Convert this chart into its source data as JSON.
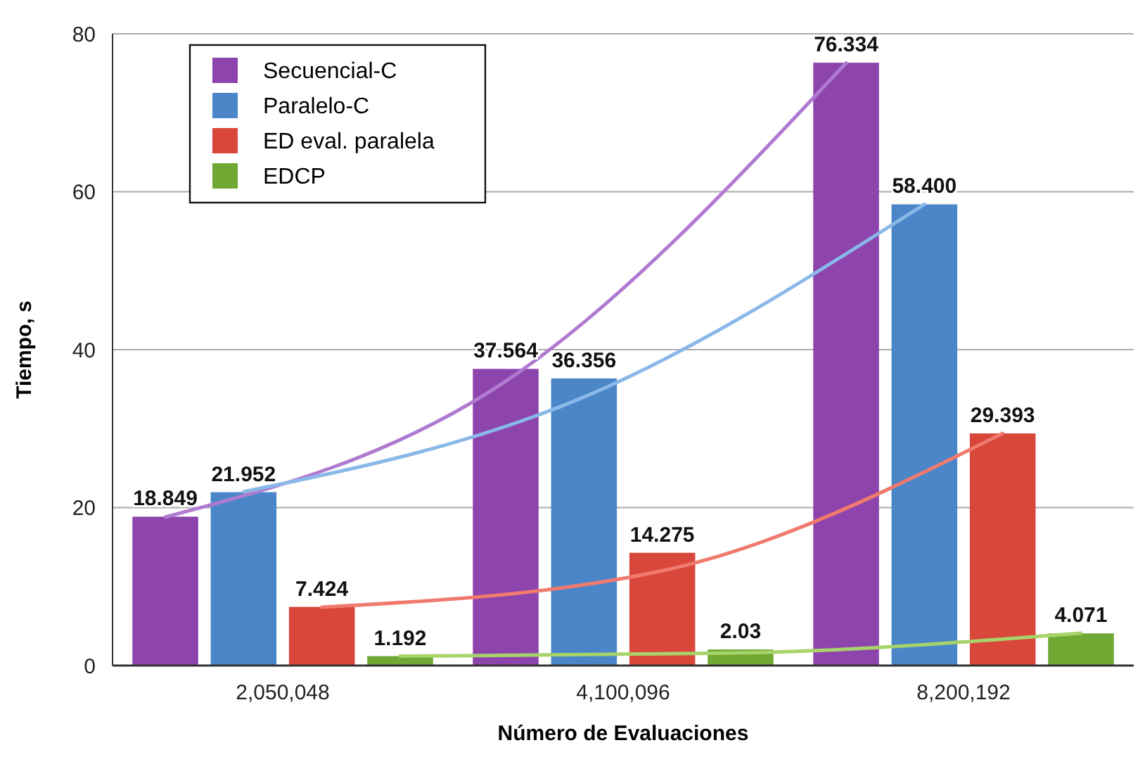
{
  "chart_data": {
    "type": "bar",
    "xlabel": "Número de Evaluaciones",
    "ylabel": "Tiempo, s",
    "categories": [
      "2,050,048",
      "4,100,096",
      "8,200,192"
    ],
    "series": [
      {
        "name": "Secuencial-C",
        "color": "#8e44ad",
        "values": [
          18.849,
          37.564,
          76.334
        ],
        "value_labels": [
          "18.849",
          "37.564",
          "76.334"
        ]
      },
      {
        "name": "Paralelo-C",
        "color": "#4a86c8",
        "values": [
          21.952,
          36.356,
          58.4
        ],
        "value_labels": [
          "21.952",
          "36.356",
          "58.400"
        ]
      },
      {
        "name": "ED eval. paralela",
        "color": "#d9463a",
        "values": [
          7.424,
          14.275,
          29.393
        ],
        "value_labels": [
          "7.424",
          "14.275",
          "29.393"
        ]
      },
      {
        "name": "EDCP",
        "color": "#6fa832",
        "values": [
          1.192,
          2.03,
          4.071
        ],
        "value_labels": [
          "1.192",
          "2.03",
          "4.071"
        ]
      },
      {
        "type": "line",
        "color": "#b07ad0",
        "values": [
          18.8,
          36,
          76.3
        ]
      },
      {
        "type": "line",
        "color": "#8ab8e8",
        "values": [
          22,
          34,
          58.4
        ]
      },
      {
        "type": "line",
        "color": "#f07a6e",
        "values": [
          7.4,
          12,
          29.4
        ]
      },
      {
        "type": "line",
        "color": "#a6d46a",
        "values": [
          1.2,
          1.6,
          4.1
        ]
      }
    ],
    "ylim": [
      0,
      80
    ],
    "yticks": [
      0,
      20,
      40,
      60,
      80
    ],
    "grid": "y",
    "legend": "top left"
  }
}
